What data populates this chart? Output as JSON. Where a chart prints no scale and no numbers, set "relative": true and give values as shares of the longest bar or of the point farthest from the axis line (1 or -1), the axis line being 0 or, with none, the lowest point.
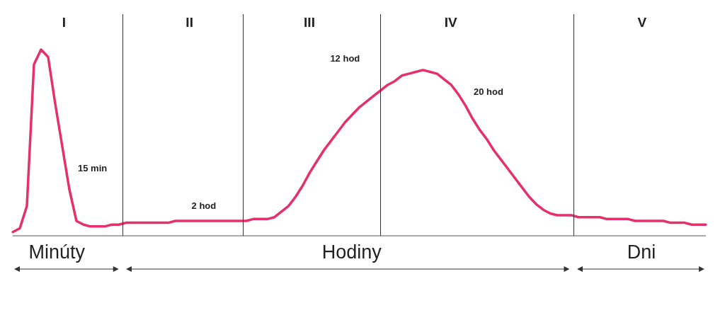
{
  "chart_data": {
    "type": "line",
    "relative": true,
    "marker": "none",
    "line_style": "solid",
    "categories": [
      null,
      null,
      null,
      null,
      null,
      null,
      null,
      null,
      null,
      null,
      null,
      null,
      null,
      null,
      null,
      null,
      null,
      null,
      null,
      null,
      null,
      null,
      null,
      null,
      null,
      null,
      null,
      null,
      null,
      null,
      null,
      null,
      null,
      null,
      null,
      null,
      null,
      null,
      null,
      null,
      null,
      null,
      null,
      null,
      null,
      null,
      null,
      null,
      null,
      null,
      null,
      null,
      null,
      null,
      null,
      null,
      null,
      null,
      null,
      null,
      null,
      null,
      null,
      null,
      null,
      null,
      null,
      null,
      null,
      null,
      null,
      null,
      null,
      null,
      null,
      null,
      null,
      null,
      null,
      null,
      null,
      null,
      null,
      null,
      null,
      null,
      null,
      null,
      null,
      null,
      null,
      null,
      null,
      null,
      null,
      null,
      null,
      null,
      null
    ],
    "series": [
      {
        "color": "#e5306a",
        "values": [
          0.02,
          0.04,
          0.16,
          0.92,
          1,
          0.96,
          0.71,
          0.48,
          0.25,
          0.08,
          0.06,
          0.05,
          0.05,
          0.05,
          0.06,
          0.06,
          0.07,
          0.07,
          0.07,
          0.07,
          0.07,
          0.07,
          0.07,
          0.08,
          0.08,
          0.08,
          0.08,
          0.08,
          0.08,
          0.08,
          0.08,
          0.08,
          0.08,
          0.08,
          0.09,
          0.09,
          0.09,
          0.1,
          0.13,
          0.16,
          0.21,
          0.27,
          0.34,
          0.4,
          0.46,
          0.51,
          0.56,
          0.61,
          0.65,
          0.69,
          0.72,
          0.75,
          0.78,
          0.81,
          0.83,
          0.86,
          0.87,
          0.88,
          0.89,
          0.88,
          0.87,
          0.84,
          0.81,
          0.76,
          0.7,
          0.63,
          0.57,
          0.52,
          0.46,
          0.41,
          0.36,
          0.31,
          0.26,
          0.21,
          0.17,
          0.14,
          0.12,
          0.11,
          0.11,
          0.11,
          0.1,
          0.1,
          0.1,
          0.1,
          0.09,
          0.09,
          0.09,
          0.09,
          0.08,
          0.08,
          0.08,
          0.08,
          0.08,
          0.07,
          0.07,
          0.07,
          0.06,
          0.06,
          0.06
        ]
      }
    ],
    "annotations": [
      "I",
      "II",
      "III",
      "IV",
      "V",
      "15 min",
      "2 hod",
      "12 hod",
      "20 hod",
      "Minúty",
      "Hodiny",
      "Dni"
    ]
  }
}
